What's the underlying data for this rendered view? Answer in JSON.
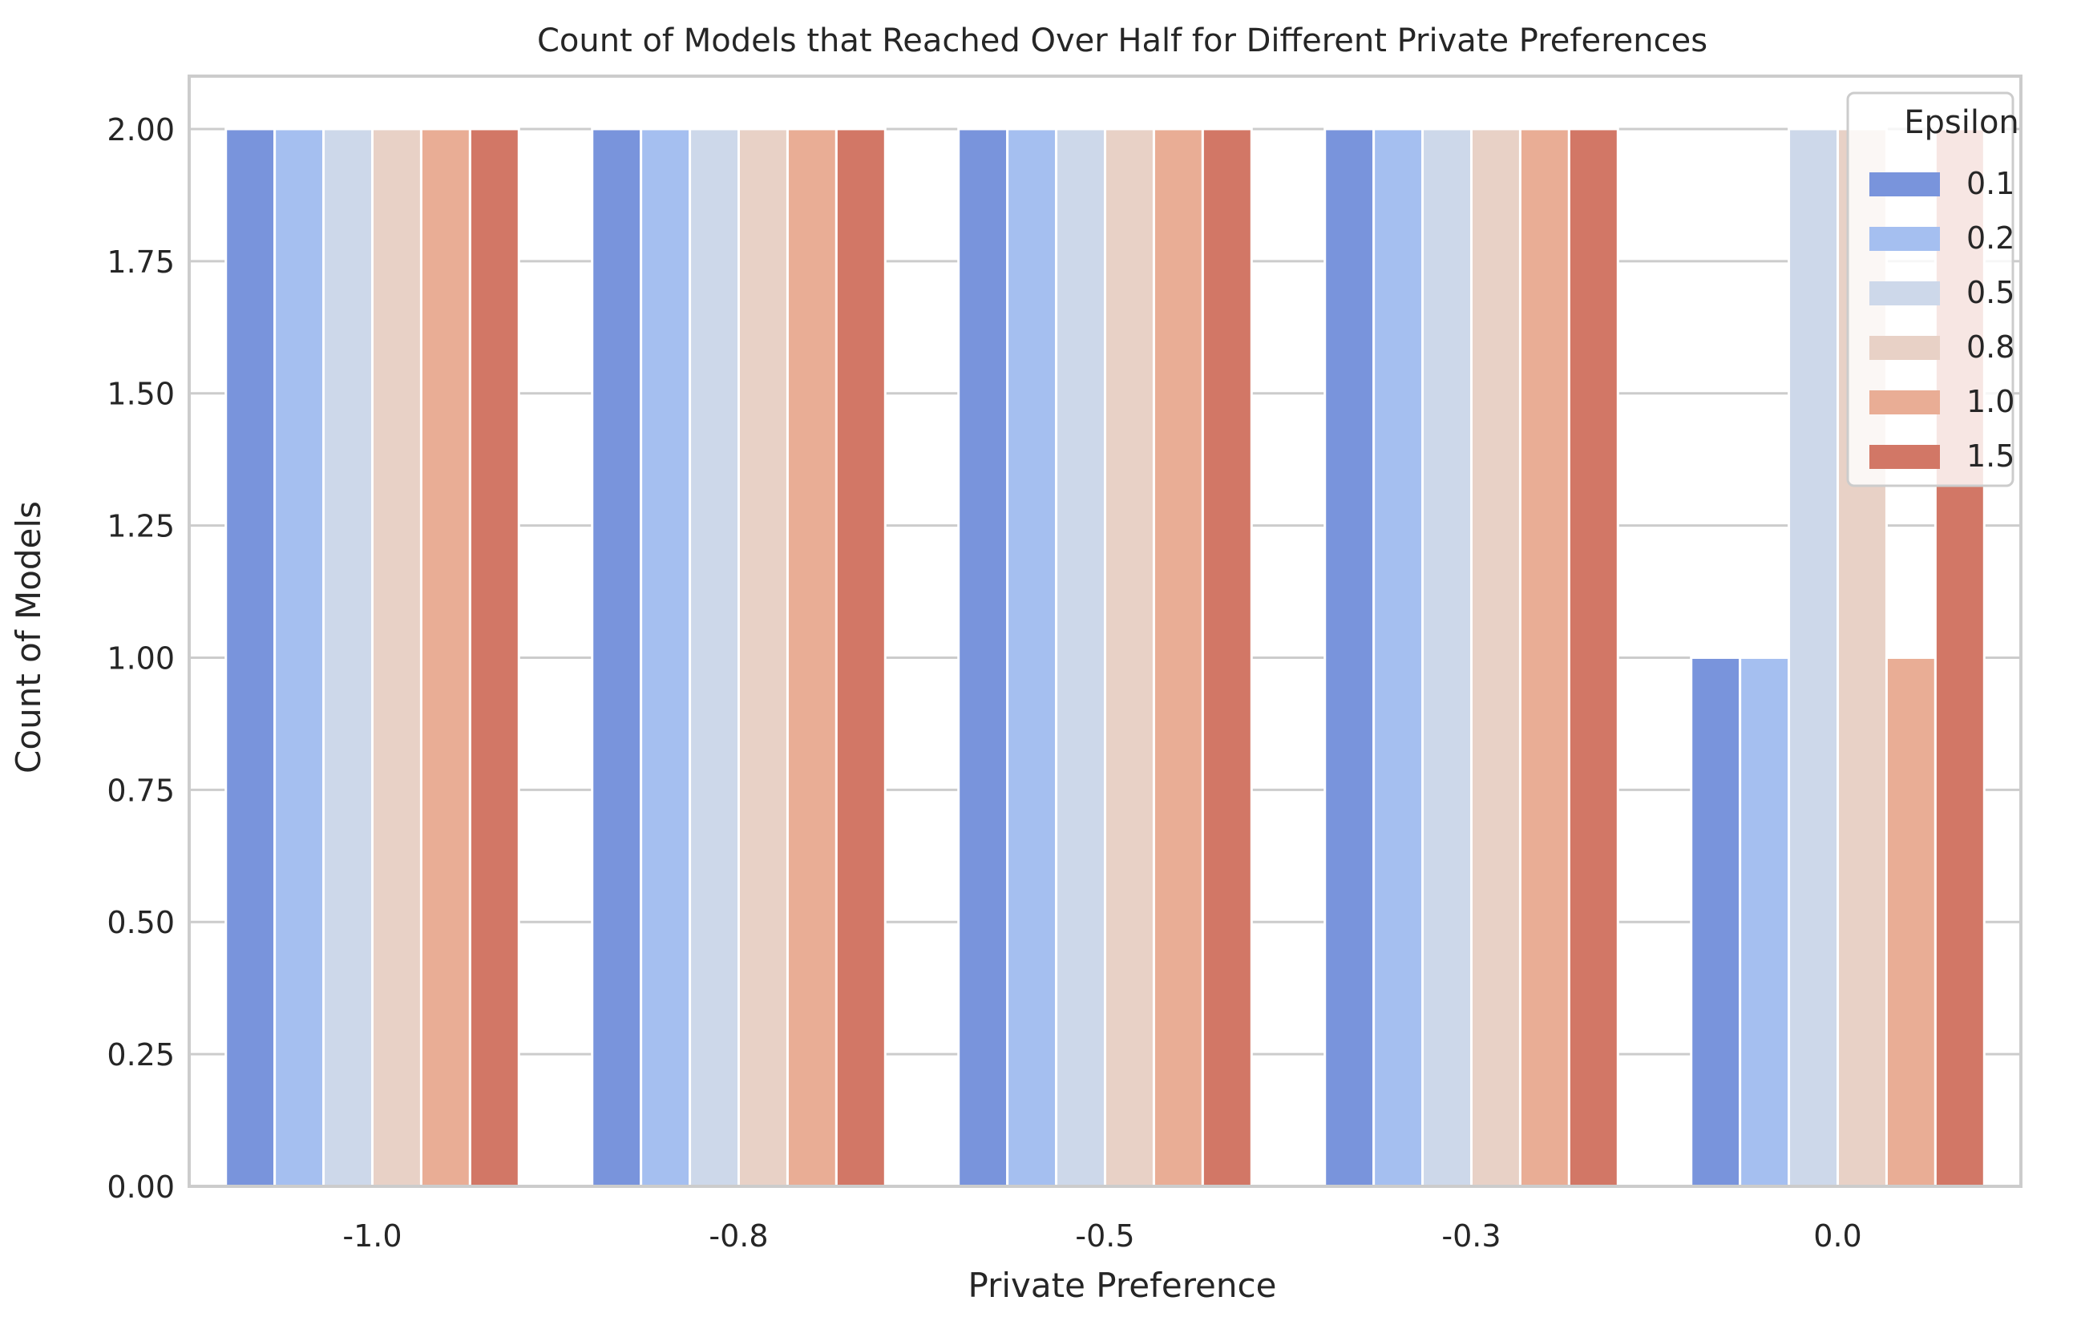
{
  "chart_data": {
    "type": "bar",
    "title": "Count of Models that Reached Over Half for Different Private Preferences",
    "xlabel": "Private Preference",
    "ylabel": "Count of Models",
    "categories": [
      "-1.0",
      "-0.8",
      "-0.5",
      "-0.3",
      "0.0"
    ],
    "ylim": [
      0,
      2.1
    ],
    "yticks": [
      "0.00",
      "0.25",
      "0.50",
      "0.75",
      "1.00",
      "1.25",
      "1.50",
      "1.75",
      "2.00"
    ],
    "grid": "horizontal",
    "legend": {
      "title": "Epsilon",
      "placement": "top-right"
    },
    "series": [
      {
        "name": "0.1",
        "color": "#7994dc",
        "values": [
          2,
          2,
          2,
          2,
          1
        ]
      },
      {
        "name": "0.2",
        "color": "#a5bff0",
        "values": [
          2,
          2,
          2,
          2,
          1
        ]
      },
      {
        "name": "0.5",
        "color": "#cdd8ea",
        "values": [
          2,
          2,
          2,
          2,
          2
        ]
      },
      {
        "name": "0.8",
        "color": "#e8d1c6",
        "values": [
          2,
          2,
          2,
          2,
          2
        ]
      },
      {
        "name": "1.0",
        "color": "#e9ad95",
        "values": [
          2,
          2,
          2,
          2,
          1
        ]
      },
      {
        "name": "1.5",
        "color": "#d27766",
        "values": [
          2,
          2,
          2,
          2,
          2
        ]
      }
    ]
  }
}
